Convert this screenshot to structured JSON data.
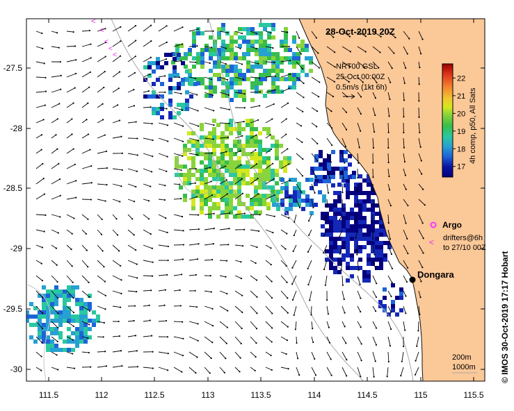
{
  "title": "28-Oct-2019 20Z",
  "credit": "© IMOS 30-Oct-2019 17:17 Hobart",
  "current_legend": {
    "line1": "NRT00 GSL",
    "line2": "25-Oct 00:00Z",
    "line3": "0.5m/s (1kt 6h)"
  },
  "colorbar": {
    "label": "4h comp, p50, All Sats",
    "ticks": [
      "17",
      "18",
      "19",
      "20",
      "21",
      "22"
    ],
    "min": 16.4,
    "max": 22.8
  },
  "argo": {
    "label": "Argo"
  },
  "drifters": {
    "line1": "drifters@6h",
    "line2": "to 27/10 00Z"
  },
  "place": {
    "name": "Dongara",
    "lon": 114.93,
    "lat": -29.25
  },
  "isobaths": {
    "label1": "200m",
    "label2": "1000m"
  },
  "axes": {
    "x_ticks": [
      "111.5",
      "112",
      "112.5",
      "113",
      "113.5",
      "114",
      "114.5",
      "115",
      "115.5"
    ],
    "y_ticks": [
      "-27.5",
      "-28",
      "-28.5",
      "-29",
      "-29.5",
      "-30"
    ]
  },
  "colors": {
    "land": "#fbc898",
    "coast": "#111111",
    "isobath": "#a8a8a8",
    "argo": "#ff33ff",
    "drifter": "#ee22ee",
    "sst_palette": [
      "#050080",
      "#1428b8",
      "#1e63d8",
      "#27a0d2",
      "#29c8a0",
      "#37be4c",
      "#88d43a",
      "#d4e81e",
      "#f2c230",
      "#f28030",
      "#e03a1c",
      "#9a0000"
    ]
  }
}
